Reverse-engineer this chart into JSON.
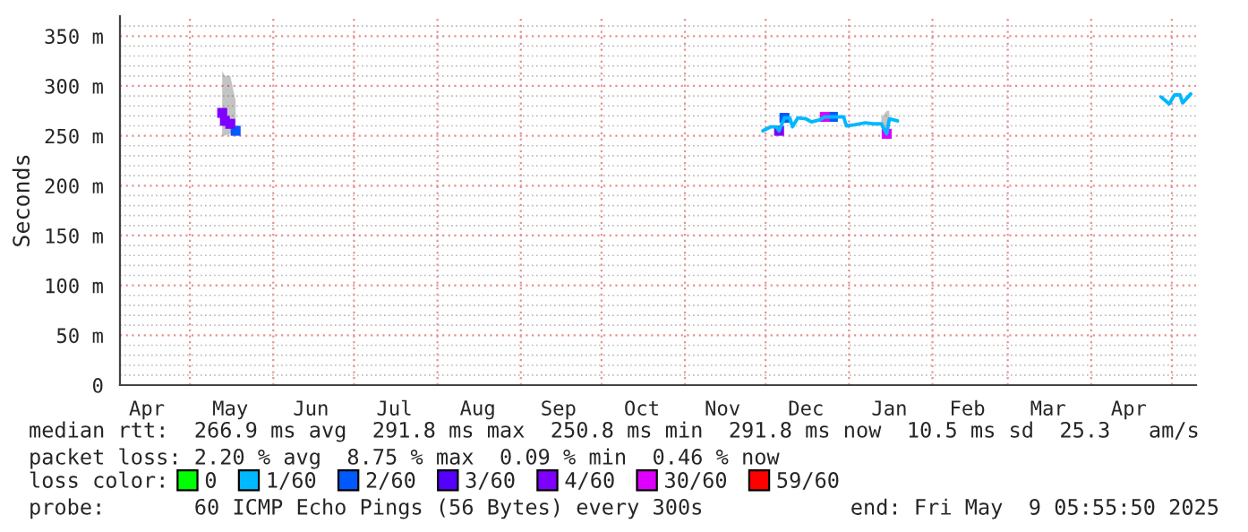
{
  "chart_data": {
    "type": "line",
    "ylabel": "Seconds",
    "legend_title": "loss color:",
    "legend": "bottom",
    "grid": true,
    "marker": "none",
    "x": [
      "2024-05-13",
      "2024-05-14",
      "2024-05-16",
      "2024-05-18",
      "2024-09-01",
      "2024-11-30",
      "2024-12-03",
      "2024-12-05",
      "2024-12-06",
      "2024-12-08",
      "2024-12-10",
      "2024-12-11",
      "2024-12-13",
      "2024-12-16",
      "2024-12-18",
      "2024-12-21",
      "2024-12-23",
      "2024-12-26",
      "2024-12-30",
      "2024-12-31",
      "2025-01-03",
      "2025-01-07",
      "2025-01-10",
      "2025-01-13",
      "2025-01-15",
      "2025-01-16",
      "2025-01-19",
      "2025-03-01",
      "2025-04-27",
      "2025-04-30",
      "2025-05-02",
      "2025-05-04",
      "2025-05-05",
      "2025-05-08"
    ],
    "series": [
      {
        "name": "0",
        "color": "#00ff00",
        "type": "scatter",
        "marker": "square",
        "values": [
          null,
          null,
          null,
          null,
          null,
          null,
          null,
          null,
          null,
          null,
          null,
          null,
          null,
          null,
          null,
          null,
          null,
          null,
          null,
          null,
          null,
          null,
          null,
          null,
          null,
          null,
          null,
          null,
          null,
          null,
          null,
          null,
          null,
          null
        ]
      },
      {
        "name": "1/60",
        "color": "#00b8ff",
        "values": [
          null,
          null,
          null,
          null,
          null,
          255,
          259,
          259,
          255,
          268,
          268,
          259,
          268,
          267,
          264,
          266,
          269,
          269,
          269,
          260,
          261,
          263,
          262,
          262,
          252,
          267,
          265,
          null,
          289,
          282,
          291,
          291,
          283,
          292
        ],
        "lower": [
          250,
          250,
          252,
          250,
          null,
          null,
          null,
          null,
          null,
          null,
          null,
          null,
          null,
          null,
          null,
          null,
          null,
          null,
          null,
          null,
          null,
          null,
          null,
          258,
          250,
          260,
          null,
          null,
          null,
          null,
          null,
          null,
          null,
          null
        ],
        "upper": [
          315,
          310,
          310,
          285,
          null,
          null,
          null,
          null,
          null,
          null,
          null,
          null,
          null,
          null,
          null,
          null,
          null,
          null,
          null,
          null,
          null,
          null,
          null,
          268,
          275,
          275,
          null,
          null,
          null,
          null,
          null,
          null,
          null,
          null
        ]
      },
      {
        "name": "2/60",
        "color": "#0059ff",
        "type": "scatter",
        "marker": "square",
        "values": [
          null,
          null,
          null,
          255,
          null,
          null,
          null,
          null,
          null,
          268,
          null,
          null,
          null,
          null,
          null,
          null,
          null,
          269,
          null,
          null,
          null,
          null,
          null,
          null,
          null,
          null,
          null,
          null,
          null,
          null,
          null,
          null,
          null,
          null
        ]
      },
      {
        "name": "3/60",
        "color": "#5500ff",
        "type": "scatter",
        "marker": "square",
        "values": [
          null,
          null,
          null,
          null,
          null,
          null,
          null,
          null,
          null,
          null,
          null,
          null,
          null,
          null,
          null,
          null,
          null,
          null,
          null,
          null,
          null,
          null,
          null,
          null,
          null,
          null,
          null,
          null,
          null,
          null,
          null,
          null,
          null,
          null
        ]
      },
      {
        "name": "4/60",
        "color": "#7e00ff",
        "type": "scatter",
        "marker": "square",
        "values": [
          273,
          265,
          262,
          null,
          null,
          null,
          null,
          null,
          255,
          null,
          null,
          null,
          null,
          null,
          null,
          null,
          null,
          null,
          null,
          null,
          null,
          null,
          null,
          null,
          null,
          null,
          null,
          null,
          null,
          null,
          null,
          null,
          null,
          null
        ]
      },
      {
        "name": "30/60",
        "color": "#dd00ff",
        "type": "scatter",
        "marker": "square",
        "values": [
          null,
          null,
          null,
          null,
          null,
          null,
          null,
          null,
          null,
          null,
          null,
          null,
          null,
          null,
          null,
          null,
          269,
          null,
          null,
          null,
          null,
          null,
          null,
          null,
          252,
          null,
          null,
          null,
          null,
          null,
          null,
          null,
          null,
          null
        ]
      },
      {
        "name": "59/60",
        "color": "#ff0000",
        "type": "scatter",
        "marker": "square",
        "values": [
          null,
          null,
          null,
          null,
          null,
          null,
          null,
          null,
          null,
          null,
          null,
          null,
          null,
          null,
          null,
          null,
          null,
          null,
          null,
          null,
          null,
          null,
          null,
          null,
          null,
          null,
          null,
          null,
          null,
          null,
          null,
          null,
          null,
          null
        ]
      }
    ],
    "xlim": [
      "2024-04-05",
      "2025-05-10"
    ],
    "xticks": [
      {
        "value": "2024-04-15",
        "label": "Apr"
      },
      {
        "value": "2024-05-01",
        "label": null
      },
      {
        "value": "2024-05-16",
        "label": "May"
      },
      {
        "value": "2024-06-01",
        "label": null
      },
      {
        "value": "2024-06-15",
        "label": "Jun"
      },
      {
        "value": "2024-07-01",
        "label": null
      },
      {
        "value": "2024-07-16",
        "label": "Jul"
      },
      {
        "value": "2024-08-01",
        "label": null
      },
      {
        "value": "2024-08-16",
        "label": "Aug"
      },
      {
        "value": "2024-09-01",
        "label": null
      },
      {
        "value": "2024-09-15",
        "label": "Sep"
      },
      {
        "value": "2024-10-01",
        "label": null
      },
      {
        "value": "2024-10-16",
        "label": "Oct"
      },
      {
        "value": "2024-11-01",
        "label": null
      },
      {
        "value": "2024-11-15",
        "label": "Nov"
      },
      {
        "value": "2024-12-01",
        "label": null
      },
      {
        "value": "2024-12-16",
        "label": "Dec"
      },
      {
        "value": "2025-01-01",
        "label": null
      },
      {
        "value": "2025-01-16",
        "label": "Jan"
      },
      {
        "value": "2025-02-01",
        "label": null
      },
      {
        "value": "2025-02-14",
        "label": "Feb"
      },
      {
        "value": "2025-03-01",
        "label": null
      },
      {
        "value": "2025-03-16",
        "label": "Mar"
      },
      {
        "value": "2025-04-01",
        "label": null
      },
      {
        "value": "2025-04-15",
        "label": "Apr"
      },
      {
        "value": "2025-05-01",
        "label": null
      }
    ],
    "ylim": [
      0,
      370
    ],
    "yticks": [
      {
        "value": 0,
        "label": "0"
      },
      {
        "value": 10,
        "label": null
      },
      {
        "value": 20,
        "label": null
      },
      {
        "value": 30,
        "label": null
      },
      {
        "value": 40,
        "label": null
      },
      {
        "value": 50,
        "label": "50 m"
      },
      {
        "value": 60,
        "label": null
      },
      {
        "value": 70,
        "label": null
      },
      {
        "value": 80,
        "label": null
      },
      {
        "value": 90,
        "label": null
      },
      {
        "value": 100,
        "label": "100 m"
      },
      {
        "value": 110,
        "label": null
      },
      {
        "value": 120,
        "label": null
      },
      {
        "value": 130,
        "label": null
      },
      {
        "value": 140,
        "label": null
      },
      {
        "value": 150,
        "label": "150 m"
      },
      {
        "value": 160,
        "label": null
      },
      {
        "value": 170,
        "label": null
      },
      {
        "value": 180,
        "label": null
      },
      {
        "value": 190,
        "label": null
      },
      {
        "value": 200,
        "label": "200 m"
      },
      {
        "value": 210,
        "label": null
      },
      {
        "value": 220,
        "label": null
      },
      {
        "value": 230,
        "label": null
      },
      {
        "value": 240,
        "label": null
      },
      {
        "value": 250,
        "label": "250 m"
      },
      {
        "value": 260,
        "label": null
      },
      {
        "value": 270,
        "label": null
      },
      {
        "value": 280,
        "label": null
      },
      {
        "value": 290,
        "label": null
      },
      {
        "value": 300,
        "label": "300 m"
      },
      {
        "value": 310,
        "label": null
      },
      {
        "value": 320,
        "label": null
      },
      {
        "value": 330,
        "label": null
      },
      {
        "value": 340,
        "label": null
      },
      {
        "value": 350,
        "label": "350 m"
      },
      {
        "value": 360,
        "label": null
      }
    ],
    "annotations": [
      "median rtt:  266.9 ms avg  291.8 ms max  250.8 ms min  291.8 ms now  10.5 ms sd  25.3   am/s",
      "packet loss: 2.20 % avg  8.75 % max  0.09 % min  0.46 % now",
      "probe:       60 ICMP Echo Pings (56 Bytes) every 300s",
      "end: Fri May  9 05:55:50 2025"
    ]
  }
}
